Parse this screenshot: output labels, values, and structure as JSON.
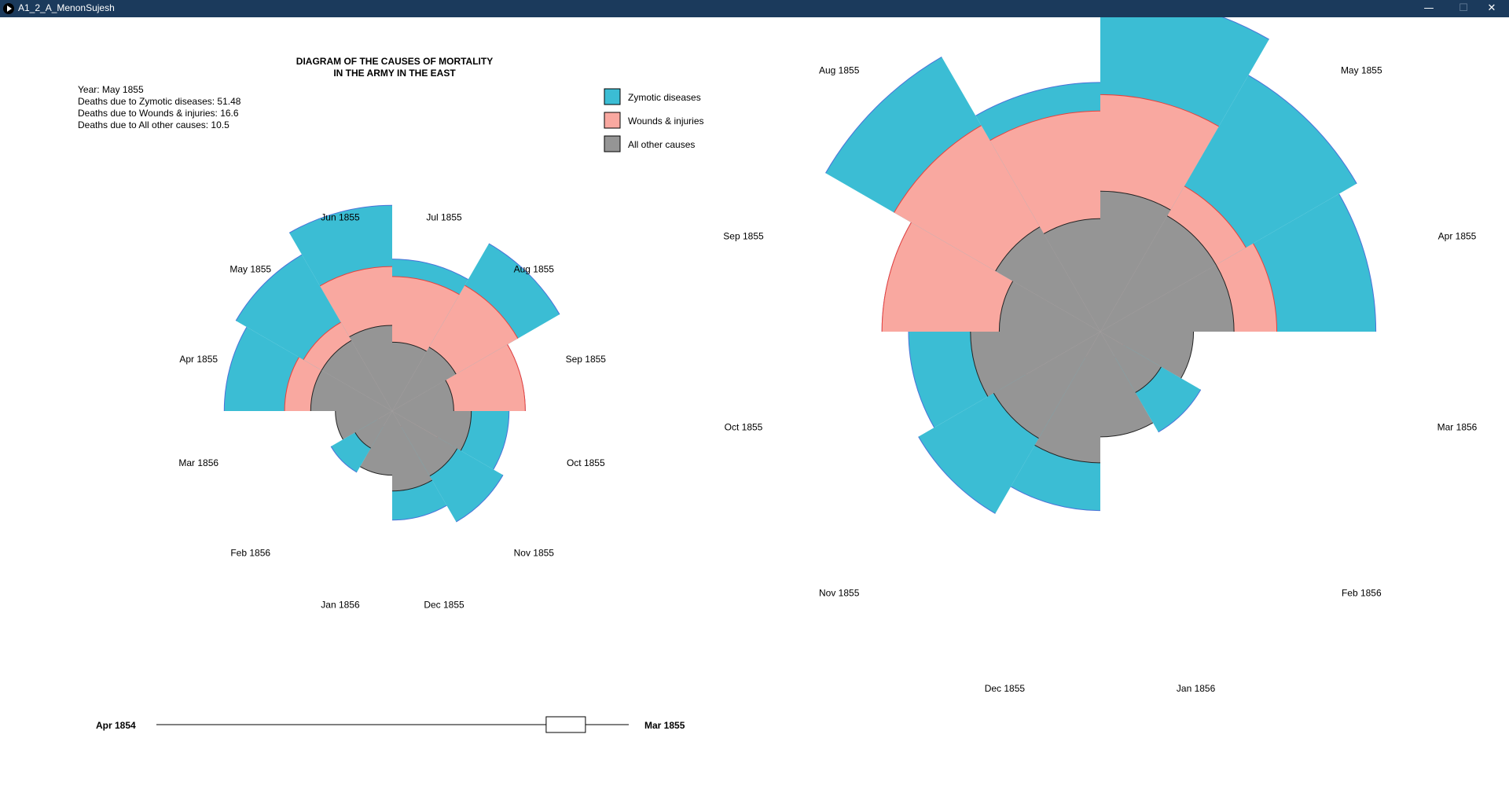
{
  "window": {
    "title": "A1_2_A_MenonSujesh",
    "minimize_glyph": "—",
    "maximize_glyph": "☐",
    "close_glyph": "✕"
  },
  "chart": {
    "title_line1": "DIAGRAM OF THE CAUSES OF MORTALITY",
    "title_line2": "IN THE ARMY IN THE EAST"
  },
  "info": {
    "year_line": "Year: May 1855",
    "zymotic_line": "Deaths due to Zymotic diseases: 51.48",
    "wounds_line": "Deaths due to Wounds & injuries: 16.6",
    "other_line": "Deaths due to All other causes: 10.5"
  },
  "legend": [
    {
      "label": "Zymotic diseases",
      "color": "#3bbdd4"
    },
    {
      "label": "Wounds & injuries",
      "color": "#f9a8a0"
    },
    {
      "label": "All other causes",
      "color": "#959595"
    }
  ],
  "slider": {
    "start_label": "Apr 1854",
    "end_label": "Mar 1855",
    "position": 0.9
  },
  "colors": {
    "zymotic": "#3bbdd4",
    "wounds": "#f9a8a0",
    "other": "#959595",
    "zymotic_edge": "#4a72d8",
    "wounds_edge": "#e8413c",
    "other_edge": "#222222",
    "titlebar": "#1b3a5c"
  },
  "chart_data": [
    {
      "type": "polar-area",
      "title": "DIAGRAM OF THE CAUSES OF MORTALITY IN THE ARMY IN THE EAST",
      "categories": [
        "Apr 1855",
        "May 1855",
        "Jun 1855",
        "Jul 1855",
        "Aug 1855",
        "Sep 1855",
        "Oct 1855",
        "Nov 1855",
        "Dec 1855",
        "Jan 1856",
        "Feb 1856",
        "Mar 1856"
      ],
      "series": [
        {
          "name": "Zymotic diseases",
          "values": [
            44.6,
            51.5,
            66.9,
            36.5,
            59.1,
            28.0,
            21.6,
            25.9,
            18.8,
            4.3,
            7.9,
            4.3
          ]
        },
        {
          "name": "Wounds & injuries",
          "values": [
            18.3,
            16.6,
            33.0,
            28.6,
            33.3,
            28.0,
            7.9,
            4.3,
            0.5,
            0.3,
            0.5,
            0.4
          ]
        },
        {
          "name": "All other causes",
          "values": [
            10.5,
            10.5,
            11.6,
            7.5,
            8.6,
            6.0,
            9.9,
            8.9,
            10.1,
            6.5,
            2.9,
            5.1
          ]
        }
      ],
      "legend_position": "top-right"
    },
    {
      "type": "polar-area",
      "categories": [
        "Apr 1855",
        "May 1855",
        "Jun 1855",
        "Jul 1855",
        "Aug 1855",
        "Sep 1855",
        "Oct 1855",
        "Nov 1855",
        "Dec 1855",
        "Jan 1856",
        "Feb 1856",
        "Mar 1856"
      ],
      "series": [
        {
          "name": "Zymotic diseases",
          "values": [
            44.6,
            51.5,
            66.9,
            36.5,
            59.1,
            28.0,
            21.6,
            25.9,
            18.8,
            4.3,
            7.9,
            4.3
          ]
        },
        {
          "name": "Wounds & injuries",
          "values": [
            18.3,
            16.6,
            33.0,
            28.6,
            33.3,
            28.0,
            7.9,
            4.3,
            0.5,
            0.3,
            0.5,
            0.4
          ]
        },
        {
          "name": "All other causes",
          "values": [
            10.5,
            10.5,
            11.6,
            7.5,
            8.6,
            6.0,
            9.9,
            8.9,
            10.1,
            6.5,
            2.9,
            5.1
          ]
        }
      ]
    }
  ]
}
